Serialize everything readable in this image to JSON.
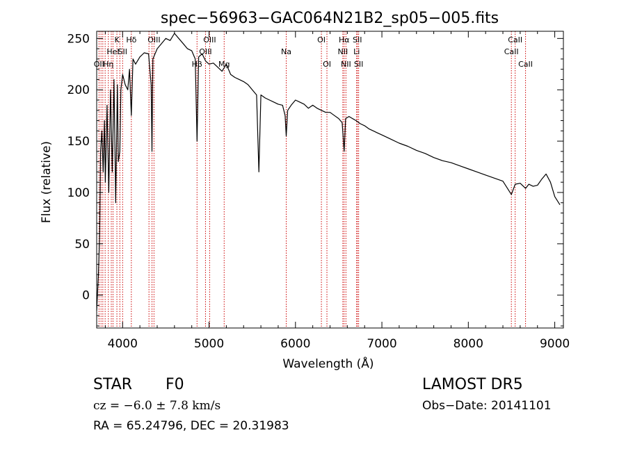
{
  "chart_data": {
    "type": "line",
    "title": "spec−56963−GAC064N21B2_sp05−005.fits",
    "xlabel": "Wavelength (Å)",
    "ylabel": "Flux (relative)",
    "xlim": [
      3700,
      9100
    ],
    "ylim": [
      -32,
      257
    ],
    "xticks": [
      4000,
      5000,
      6000,
      7000,
      8000,
      9000
    ],
    "yticks": [
      0,
      50,
      100,
      150,
      200,
      250
    ],
    "grid": false,
    "line_color": "#000000",
    "marker_color": "#cc0000",
    "series": [
      {
        "x": [
          3700,
          3720,
          3735,
          3745,
          3760,
          3775,
          3790,
          3800,
          3820,
          3840,
          3860,
          3880,
          3900,
          3920,
          3940,
          3950,
          3968,
          3980,
          4000,
          4030,
          4060,
          4080,
          4101,
          4120,
          4150,
          4200,
          4250,
          4300,
          4330,
          4340,
          4350,
          4400,
          4450,
          4500,
          4550,
          4600,
          4650,
          4700,
          4750,
          4800,
          4840,
          4861,
          4880,
          4920,
          4960,
          5000,
          5050,
          5100,
          5150,
          5200,
          5250,
          5300,
          5350,
          5400,
          5450,
          5500,
          5550,
          5577,
          5600,
          5650,
          5700,
          5750,
          5800,
          5850,
          5880,
          5893,
          5910,
          5950,
          6000,
          6050,
          6100,
          6150,
          6200,
          6250,
          6300,
          6350,
          6400,
          6450,
          6500,
          6540,
          6563,
          6580,
          6620,
          6660,
          6700,
          6750,
          6800,
          6850,
          6900,
          6950,
          7000,
          7100,
          7200,
          7300,
          7400,
          7500,
          7600,
          7700,
          7800,
          7900,
          8000,
          8100,
          8200,
          8300,
          8400,
          8498,
          8542,
          8600,
          8662,
          8700,
          8750,
          8800,
          8850,
          8900,
          8950,
          9000,
          9030,
          9060
        ],
        "y": [
          -15,
          20,
          60,
          140,
          160,
          120,
          170,
          110,
          185,
          100,
          200,
          120,
          210,
          90,
          205,
          130,
          140,
          200,
          215,
          205,
          200,
          220,
          175,
          230,
          225,
          232,
          236,
          235,
          205,
          140,
          230,
          240,
          245,
          250,
          248,
          255,
          250,
          245,
          240,
          238,
          230,
          150,
          232,
          235,
          228,
          225,
          226,
          222,
          218,
          225,
          215,
          212,
          210,
          208,
          205,
          200,
          195,
          120,
          195,
          192,
          190,
          188,
          186,
          185,
          175,
          155,
          180,
          185,
          190,
          188,
          186,
          182,
          185,
          182,
          180,
          178,
          178,
          175,
          172,
          168,
          140,
          172,
          174,
          172,
          170,
          167,
          165,
          162,
          160,
          158,
          156,
          152,
          148,
          145,
          141,
          138,
          134,
          131,
          129,
          126,
          123,
          120,
          117,
          114,
          111,
          98,
          108,
          109,
          104,
          108,
          106,
          107,
          113,
          118,
          110,
          96,
          92,
          88
        ]
      }
    ],
    "line_markers": [
      {
        "x": 3727,
        "label": "OII",
        "row": 3
      },
      {
        "x": 3750,
        "label": "",
        "row": 0
      },
      {
        "x": 3771,
        "label": "",
        "row": 0
      },
      {
        "x": 3798,
        "label": "",
        "row": 0
      },
      {
        "x": 3835,
        "label": "Hη",
        "row": 3
      },
      {
        "x": 3869,
        "label": "",
        "row": 0
      },
      {
        "x": 3889,
        "label": "HeI",
        "row": 2
      },
      {
        "x": 3934,
        "label": "K",
        "row": 1
      },
      {
        "x": 3968,
        "label": "",
        "row": 0
      },
      {
        "x": 4000,
        "label": "SII",
        "row": 2
      },
      {
        "x": 4101,
        "label": "Hδ",
        "row": 1
      },
      {
        "x": 4305,
        "label": "",
        "row": 2
      },
      {
        "x": 4340,
        "label": "",
        "row": 0
      },
      {
        "x": 4363,
        "label": "OIII",
        "row": 1
      },
      {
        "x": 4861,
        "label": "Hβ",
        "row": 3
      },
      {
        "x": 4959,
        "label": "OIII",
        "row": 2
      },
      {
        "x": 5007,
        "label": "OIII",
        "row": 1
      },
      {
        "x": 5175,
        "label": "Mg",
        "row": 3
      },
      {
        "x": 5893,
        "label": "Na",
        "row": 2
      },
      {
        "x": 6300,
        "label": "OI",
        "row": 1
      },
      {
        "x": 6364,
        "label": "OI",
        "row": 3
      },
      {
        "x": 6548,
        "label": "NII",
        "row": 2
      },
      {
        "x": 6563,
        "label": "Hα",
        "row": 1
      },
      {
        "x": 6584,
        "label": "NII",
        "row": 3
      },
      {
        "x": 6708,
        "label": "Li",
        "row": 2
      },
      {
        "x": 6716,
        "label": "SII",
        "row": 1
      },
      {
        "x": 6731,
        "label": "SII",
        "row": 3
      },
      {
        "x": 8498,
        "label": "CaII",
        "row": 2
      },
      {
        "x": 8542,
        "label": "CaII",
        "row": 1
      },
      {
        "x": 8662,
        "label": "CaII",
        "row": 3
      }
    ]
  },
  "info": {
    "object_class": "STAR",
    "subclass": "F0",
    "survey": "LAMOST DR5",
    "redshift": "cz = −6.0 ± 7.8 km/s",
    "obs_date": "Obs−Date: 20141101",
    "coords": "RA =  65.24796, DEC =  20.31983"
  }
}
